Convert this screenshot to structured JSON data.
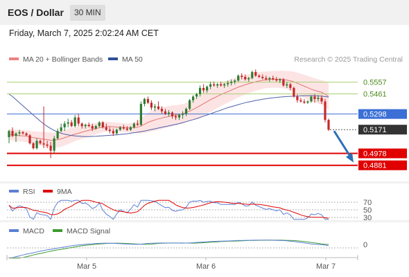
{
  "header": {
    "title": "EOS / Dollar",
    "timeframe": "30 MIN"
  },
  "datetime": "Friday, March 7, 2025 2:02:24 AM CET",
  "legend": {
    "bollinger": "MA 20 + Bollinger Bands",
    "ma50": "MA 50"
  },
  "credit": "Research © 2025 Trading Central",
  "rsi_legend": {
    "rsi": "RSI",
    "ma": "9MA"
  },
  "macd_legend": {
    "macd": "MACD",
    "signal": "MACD Signal"
  },
  "colors": {
    "up": "#2e7d32",
    "down": "#c62828",
    "ma50": "#4f5fa8",
    "ma20": "#e57373",
    "band": "#fde4e4",
    "resistance": "#a6cf6e",
    "pivot": "#3b6fd6",
    "support": "#e00000",
    "current": "#333333",
    "arrow": "#2f6fb5"
  },
  "chart_data": [
    {
      "type": "candlestick",
      "title": "EOS / Dollar",
      "x_ticks": [
        "Mar 5",
        "Mar 6",
        "Mar 7"
      ],
      "ylim": [
        0.475,
        0.569
      ],
      "candles": [
        [
          0.511,
          0.517,
          0.506,
          0.516
        ],
        [
          0.516,
          0.519,
          0.511,
          0.512
        ],
        [
          0.512,
          0.515,
          0.507,
          0.514
        ],
        [
          0.514,
          0.517,
          0.512,
          0.515
        ],
        [
          0.515,
          0.516,
          0.513,
          0.514
        ],
        [
          0.514,
          0.515,
          0.512,
          0.5125
        ],
        [
          0.5125,
          0.5135,
          0.505,
          0.506
        ],
        [
          0.506,
          0.507,
          0.501,
          0.502
        ],
        [
          0.502,
          0.51,
          0.501,
          0.508
        ],
        [
          0.508,
          0.509,
          0.505,
          0.506
        ],
        [
          0.506,
          0.536,
          0.502,
          0.505
        ],
        [
          0.505,
          0.508,
          0.502,
          0.504
        ],
        [
          0.504,
          0.507,
          0.494,
          0.5
        ],
        [
          0.5,
          0.512,
          0.498,
          0.51
        ],
        [
          0.51,
          0.518,
          0.509,
          0.516
        ],
        [
          0.516,
          0.522,
          0.515,
          0.519
        ],
        [
          0.519,
          0.524,
          0.516,
          0.522
        ],
        [
          0.522,
          0.526,
          0.519,
          0.523
        ],
        [
          0.523,
          0.525,
          0.519,
          0.52
        ],
        [
          0.52,
          0.529,
          0.519,
          0.527
        ],
        [
          0.527,
          0.53,
          0.52,
          0.522
        ],
        [
          0.522,
          0.523,
          0.518,
          0.52
        ],
        [
          0.52,
          0.522,
          0.518,
          0.521
        ],
        [
          0.521,
          0.523,
          0.519,
          0.52
        ],
        [
          0.52,
          0.522,
          0.516,
          0.518
        ],
        [
          0.518,
          0.521,
          0.517,
          0.52
        ],
        [
          0.52,
          0.524,
          0.519,
          0.523
        ],
        [
          0.523,
          0.524,
          0.518,
          0.519
        ],
        [
          0.519,
          0.522,
          0.516,
          0.517
        ],
        [
          0.517,
          0.519,
          0.514,
          0.516
        ],
        [
          0.516,
          0.518,
          0.512,
          0.514
        ],
        [
          0.514,
          0.518,
          0.513,
          0.517
        ],
        [
          0.517,
          0.52,
          0.516,
          0.519
        ],
        [
          0.519,
          0.521,
          0.517,
          0.518
        ],
        [
          0.518,
          0.52,
          0.516,
          0.517
        ],
        [
          0.517,
          0.52,
          0.516,
          0.519
        ],
        [
          0.519,
          0.523,
          0.518,
          0.522
        ],
        [
          0.522,
          0.525,
          0.52,
          0.521
        ],
        [
          0.521,
          0.54,
          0.52,
          0.538
        ],
        [
          0.538,
          0.543,
          0.536,
          0.542
        ],
        [
          0.542,
          0.544,
          0.538,
          0.539
        ],
        [
          0.539,
          0.541,
          0.533,
          0.535
        ],
        [
          0.535,
          0.538,
          0.532,
          0.536
        ],
        [
          0.536,
          0.54,
          0.533,
          0.534
        ],
        [
          0.534,
          0.536,
          0.53,
          0.532
        ],
        [
          0.532,
          0.534,
          0.529,
          0.53
        ],
        [
          0.53,
          0.533,
          0.528,
          0.531
        ],
        [
          0.531,
          0.532,
          0.526,
          0.528
        ],
        [
          0.528,
          0.53,
          0.525,
          0.527
        ],
        [
          0.527,
          0.53,
          0.525,
          0.529
        ],
        [
          0.529,
          0.532,
          0.526,
          0.53
        ],
        [
          0.53,
          0.535,
          0.528,
          0.534
        ],
        [
          0.534,
          0.542,
          0.533,
          0.541
        ],
        [
          0.541,
          0.545,
          0.539,
          0.544
        ],
        [
          0.544,
          0.547,
          0.542,
          0.546
        ],
        [
          0.546,
          0.553,
          0.544,
          0.551
        ],
        [
          0.551,
          0.554,
          0.547,
          0.549
        ],
        [
          0.549,
          0.553,
          0.547,
          0.552
        ],
        [
          0.552,
          0.556,
          0.55,
          0.554
        ],
        [
          0.554,
          0.556,
          0.552,
          0.553
        ],
        [
          0.553,
          0.555,
          0.551,
          0.554
        ],
        [
          0.554,
          0.556,
          0.552,
          0.553
        ],
        [
          0.553,
          0.555,
          0.551,
          0.554
        ],
        [
          0.554,
          0.557,
          0.552,
          0.555
        ],
        [
          0.555,
          0.558,
          0.553,
          0.556
        ],
        [
          0.556,
          0.558,
          0.554,
          0.557
        ],
        [
          0.557,
          0.562,
          0.556,
          0.561
        ],
        [
          0.561,
          0.563,
          0.558,
          0.56
        ],
        [
          0.56,
          0.562,
          0.557,
          0.558
        ],
        [
          0.558,
          0.56,
          0.556,
          0.559
        ],
        [
          0.559,
          0.565,
          0.558,
          0.564
        ],
        [
          0.564,
          0.566,
          0.56,
          0.561
        ],
        [
          0.561,
          0.562,
          0.559,
          0.56
        ],
        [
          0.56,
          0.562,
          0.558,
          0.559
        ],
        [
          0.559,
          0.561,
          0.557,
          0.558
        ],
        [
          0.558,
          0.56,
          0.556,
          0.559
        ],
        [
          0.559,
          0.561,
          0.557,
          0.558
        ],
        [
          0.558,
          0.56,
          0.556,
          0.557
        ],
        [
          0.557,
          0.559,
          0.555,
          0.558
        ],
        [
          0.558,
          0.559,
          0.552,
          0.553
        ],
        [
          0.553,
          0.556,
          0.551,
          0.554
        ],
        [
          0.554,
          0.555,
          0.549,
          0.551
        ],
        [
          0.551,
          0.552,
          0.543,
          0.544
        ],
        [
          0.544,
          0.546,
          0.539,
          0.541
        ],
        [
          0.541,
          0.543,
          0.539,
          0.54
        ],
        [
          0.54,
          0.542,
          0.538,
          0.539
        ],
        [
          0.539,
          0.541,
          0.538,
          0.54
        ],
        [
          0.54,
          0.545,
          0.539,
          0.544
        ],
        [
          0.544,
          0.546,
          0.539,
          0.542
        ],
        [
          0.542,
          0.545,
          0.54,
          0.543
        ],
        [
          0.543,
          0.545,
          0.538,
          0.54
        ],
        [
          0.54,
          0.542,
          0.523,
          0.525
        ],
        [
          0.525,
          0.526,
          0.516,
          0.517
        ]
      ],
      "ma20": [
        0.513,
        0.5128,
        0.5125,
        0.5122,
        0.512,
        0.5118,
        0.5112,
        0.5105,
        0.5102,
        0.5098,
        0.5093,
        0.509,
        0.5085,
        0.5085,
        0.509,
        0.5096,
        0.5105,
        0.5115,
        0.5125,
        0.5135,
        0.5142,
        0.515,
        0.5158,
        0.5166,
        0.5172,
        0.518,
        0.5186,
        0.5192,
        0.5195,
        0.5196,
        0.5194,
        0.5192,
        0.519,
        0.5188,
        0.5186,
        0.5186,
        0.5188,
        0.519,
        0.52,
        0.5215,
        0.523,
        0.524,
        0.525,
        0.5258,
        0.5266,
        0.5272,
        0.5278,
        0.5284,
        0.5288,
        0.5294,
        0.53,
        0.531,
        0.5322,
        0.5336,
        0.535,
        0.5366,
        0.5382,
        0.5398,
        0.5414,
        0.5428,
        0.5442,
        0.5456,
        0.5468,
        0.548,
        0.5492,
        0.5504,
        0.5516,
        0.5526,
        0.5536,
        0.5544,
        0.5552,
        0.556,
        0.5566,
        0.5572,
        0.5576,
        0.5578,
        0.558,
        0.558,
        0.558,
        0.5578,
        0.5574,
        0.5568,
        0.556,
        0.5548,
        0.5536,
        0.5524,
        0.5512,
        0.55,
        0.549,
        0.5482,
        0.5474,
        0.546,
        0.544
      ],
      "bb_width": [
        0.0045,
        0.0045,
        0.0046,
        0.0046,
        0.0047,
        0.0048,
        0.005,
        0.0052,
        0.0054,
        0.0056,
        0.0058,
        0.006,
        0.0062,
        0.0063,
        0.0064,
        0.0064,
        0.0063,
        0.0062,
        0.006,
        0.0058,
        0.0056,
        0.0054,
        0.0052,
        0.005,
        0.0048,
        0.0046,
        0.0044,
        0.0042,
        0.004,
        0.0038,
        0.0037,
        0.0036,
        0.0035,
        0.0035,
        0.0036,
        0.0038,
        0.0042,
        0.005,
        0.006,
        0.007,
        0.0078,
        0.0084,
        0.0088,
        0.009,
        0.009,
        0.0088,
        0.0086,
        0.0084,
        0.0082,
        0.008,
        0.0078,
        0.0077,
        0.0078,
        0.0082,
        0.0088,
        0.0094,
        0.0098,
        0.01,
        0.01,
        0.0098,
        0.0096,
        0.0094,
        0.0092,
        0.009,
        0.0088,
        0.0086,
        0.0084,
        0.0082,
        0.008,
        0.0078,
        0.0076,
        0.0074,
        0.0072,
        0.007,
        0.0068,
        0.0068,
        0.0068,
        0.0068,
        0.007,
        0.0072,
        0.0074,
        0.0078,
        0.0082,
        0.0086,
        0.009,
        0.0094,
        0.0096,
        0.0098,
        0.0098,
        0.0098,
        0.01,
        0.0104,
        0.011
      ],
      "ma50": [
        0.546,
        0.544,
        0.5415,
        0.539,
        0.5365,
        0.534,
        0.5315,
        0.529,
        0.5265,
        0.524,
        0.5218,
        0.5198,
        0.518,
        0.5165,
        0.5152,
        0.5142,
        0.5134,
        0.5128,
        0.5124,
        0.512,
        0.5118,
        0.5116,
        0.5115,
        0.5115,
        0.5116,
        0.5117,
        0.5119,
        0.5121,
        0.5123,
        0.5125,
        0.5127,
        0.5129,
        0.5132,
        0.5135,
        0.5138,
        0.5142,
        0.5146,
        0.515,
        0.5155,
        0.516,
        0.5166,
        0.5172,
        0.5178,
        0.5184,
        0.519,
        0.5196,
        0.5202,
        0.5208,
        0.5214,
        0.522,
        0.5228,
        0.5236,
        0.5244,
        0.5252,
        0.526,
        0.527,
        0.528,
        0.529,
        0.53,
        0.531,
        0.532,
        0.533,
        0.534,
        0.535,
        0.5358,
        0.5366,
        0.5374,
        0.5382,
        0.539,
        0.5396,
        0.5402,
        0.5408,
        0.5413,
        0.5418,
        0.5422,
        0.5426,
        0.543,
        0.5433,
        0.5436,
        0.5438,
        0.544,
        0.5442,
        0.5443,
        0.5444,
        0.5445,
        0.5446,
        0.5447,
        0.5448,
        0.5447,
        0.5445,
        0.5443,
        0.544,
        0.5436
      ],
      "resistance": [
        0.5557,
        0.5461
      ],
      "pivot": 0.5298,
      "current": 0.5171,
      "support": [
        0.4978,
        0.4881
      ],
      "rsi": {
        "levels": [
          70,
          50,
          30
        ]
      },
      "macd": {
        "levels": [
          0
        ]
      }
    }
  ]
}
